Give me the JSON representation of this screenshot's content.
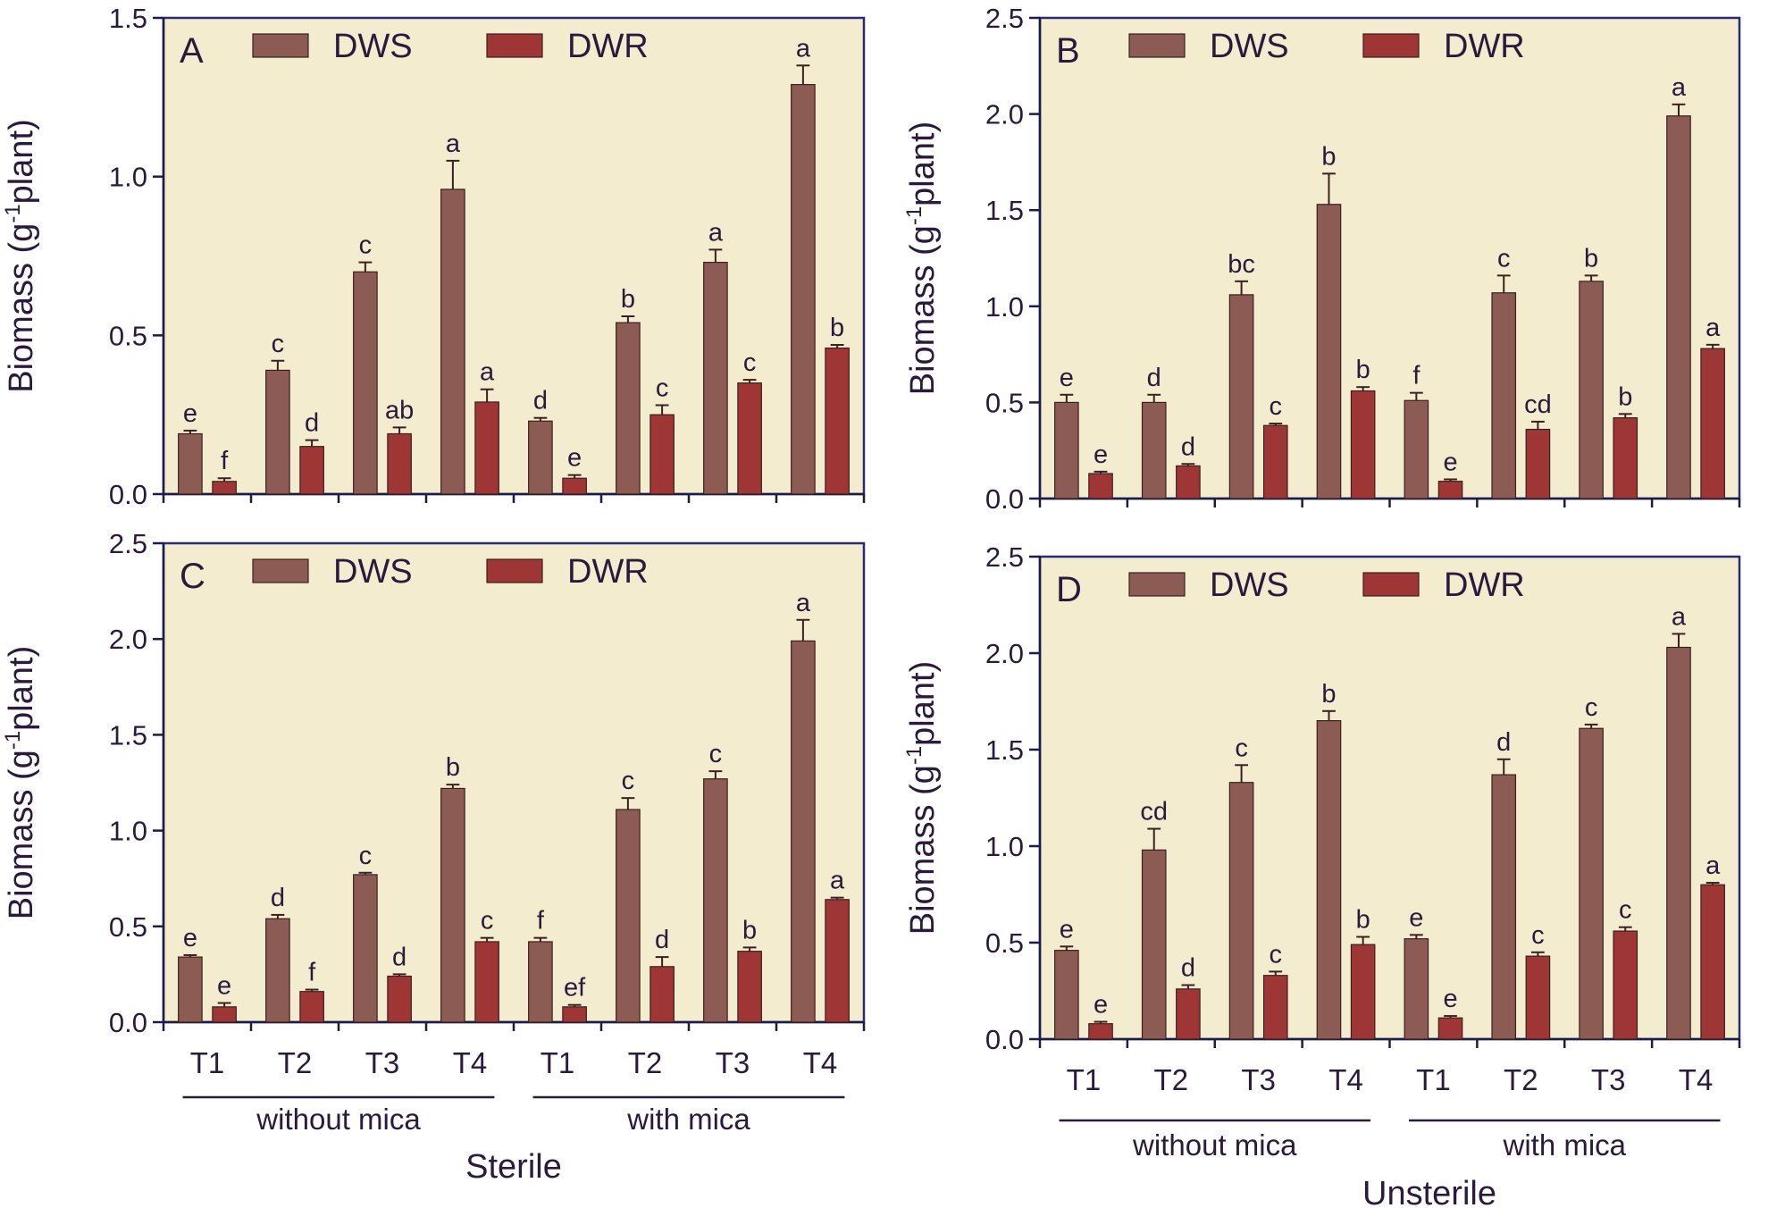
{
  "colors": {
    "DWS": "#8c5b54",
    "DWR": "#9e3635",
    "panel_background": "#f4ecce",
    "axis": "#1c1c4a",
    "text": "#2b1a3e"
  },
  "bottom_titles": {
    "left": "Sterile",
    "right": "Unsterile"
  },
  "chart_data": [
    {
      "type": "bar",
      "panel": "A",
      "ylabel": "Biomass (g-1plant)",
      "ylabel_parts": [
        "Biomass (g",
        "-1",
        "plant)"
      ],
      "ylim": [
        0,
        1.5
      ],
      "yticks": [
        "0.0",
        "0.5",
        "1.0",
        "1.5"
      ],
      "ytick_values": [
        0,
        0.5,
        1.0,
        1.5
      ],
      "categories": [
        "T1",
        "T2",
        "T3",
        "T4",
        "T1",
        "T2",
        "T3",
        "T4"
      ],
      "show_category_labels": false,
      "groups": [],
      "legend": [
        "DWS",
        "DWR"
      ],
      "series": [
        {
          "name": "DWS",
          "values": [
            0.19,
            0.39,
            0.7,
            0.96,
            0.23,
            0.54,
            0.73,
            1.29
          ],
          "errors": [
            0.01,
            0.03,
            0.03,
            0.09,
            0.01,
            0.02,
            0.04,
            0.06
          ],
          "labels": [
            "e",
            "c",
            "c",
            "a",
            "d",
            "b",
            "a",
            "a"
          ]
        },
        {
          "name": "DWR",
          "values": [
            0.04,
            0.15,
            0.19,
            0.29,
            0.05,
            0.25,
            0.35,
            0.46
          ],
          "errors": [
            0.01,
            0.02,
            0.02,
            0.04,
            0.01,
            0.03,
            0.01,
            0.01
          ],
          "labels": [
            "f",
            "d",
            "ab",
            "a",
            "e",
            "c",
            "c",
            "b"
          ]
        }
      ]
    },
    {
      "type": "bar",
      "panel": "B",
      "ylabel": "Biomass (g-1plant)",
      "ylabel_parts": [
        "Biomass (g",
        "-1",
        "plant)"
      ],
      "ylim": [
        0,
        2.5
      ],
      "yticks": [
        "0.0",
        "0.5",
        "1.0",
        "1.5",
        "2.0",
        "2.5"
      ],
      "ytick_values": [
        0,
        0.5,
        1.0,
        1.5,
        2.0,
        2.5
      ],
      "categories": [
        "T1",
        "T2",
        "T3",
        "T4",
        "T1",
        "T2",
        "T3",
        "T4"
      ],
      "show_category_labels": false,
      "groups": [],
      "legend": [
        "DWS",
        "DWR"
      ],
      "series": [
        {
          "name": "DWS",
          "values": [
            0.5,
            0.5,
            1.06,
            1.53,
            0.51,
            1.07,
            1.13,
            1.99
          ],
          "errors": [
            0.04,
            0.04,
            0.07,
            0.16,
            0.04,
            0.09,
            0.03,
            0.06
          ],
          "labels": [
            "e",
            "d",
            "bc",
            "b",
            "f",
            "c",
            "b",
            "a"
          ]
        },
        {
          "name": "DWR",
          "values": [
            0.13,
            0.17,
            0.38,
            0.56,
            0.09,
            0.36,
            0.42,
            0.78
          ],
          "errors": [
            0.01,
            0.01,
            0.01,
            0.02,
            0.01,
            0.04,
            0.02,
            0.02
          ],
          "labels": [
            "e",
            "d",
            "c",
            "b",
            "e",
            "cd",
            "b",
            "a"
          ]
        }
      ]
    },
    {
      "type": "bar",
      "panel": "C",
      "ylabel": "Biomass (g-1plant)",
      "ylabel_parts": [
        "Biomass (g",
        "-1",
        "plant)"
      ],
      "ylim": [
        0,
        2.5
      ],
      "yticks": [
        "0.0",
        "0.5",
        "1.0",
        "1.5",
        "2.0",
        "2.5"
      ],
      "ytick_values": [
        0,
        0.5,
        1.0,
        1.5,
        2.0,
        2.5
      ],
      "categories": [
        "T1",
        "T2",
        "T3",
        "T4",
        "T1",
        "T2",
        "T3",
        "T4"
      ],
      "show_category_labels": true,
      "groups": [
        {
          "label": "without mica",
          "from": 0,
          "to": 3
        },
        {
          "label": "with mica",
          "from": 4,
          "to": 7
        }
      ],
      "legend": [
        "DWS",
        "DWR"
      ],
      "series": [
        {
          "name": "DWS",
          "values": [
            0.34,
            0.54,
            0.77,
            1.22,
            0.42,
            1.11,
            1.27,
            1.99
          ],
          "errors": [
            0.01,
            0.02,
            0.01,
            0.02,
            0.02,
            0.06,
            0.04,
            0.11
          ],
          "labels": [
            "e",
            "d",
            "c",
            "b",
            "f",
            "c",
            "c",
            "a"
          ]
        },
        {
          "name": "DWR",
          "values": [
            0.08,
            0.16,
            0.24,
            0.42,
            0.08,
            0.29,
            0.37,
            0.64
          ],
          "errors": [
            0.02,
            0.01,
            0.01,
            0.02,
            0.01,
            0.05,
            0.02,
            0.01
          ],
          "labels": [
            "e",
            "f",
            "d",
            "c",
            "ef",
            "d",
            "b",
            "a"
          ]
        }
      ]
    },
    {
      "type": "bar",
      "panel": "D",
      "ylabel": "Biomass (g-1plant)",
      "ylabel_parts": [
        "Biomass (g",
        "-1",
        "plant)"
      ],
      "ylim": [
        0,
        2.5
      ],
      "yticks": [
        "0.0",
        "0.5",
        "1.0",
        "1.5",
        "2.0",
        "2.5"
      ],
      "ytick_values": [
        0,
        0.5,
        1.0,
        1.5,
        2.0,
        2.5
      ],
      "categories": [
        "T1",
        "T2",
        "T3",
        "T4",
        "T1",
        "T2",
        "T3",
        "T4"
      ],
      "show_category_labels": true,
      "groups": [
        {
          "label": "without mica",
          "from": 0,
          "to": 3
        },
        {
          "label": "with mica",
          "from": 4,
          "to": 7
        }
      ],
      "legend": [
        "DWS",
        "DWR"
      ],
      "series": [
        {
          "name": "DWS",
          "values": [
            0.46,
            0.98,
            1.33,
            1.65,
            0.52,
            1.37,
            1.61,
            2.03
          ],
          "errors": [
            0.02,
            0.11,
            0.09,
            0.05,
            0.02,
            0.08,
            0.02,
            0.07
          ],
          "labels": [
            "e",
            "cd",
            "c",
            "b",
            "e",
            "d",
            "c",
            "a"
          ]
        },
        {
          "name": "DWR",
          "values": [
            0.08,
            0.26,
            0.33,
            0.49,
            0.11,
            0.43,
            0.56,
            0.8
          ],
          "errors": [
            0.01,
            0.02,
            0.02,
            0.04,
            0.01,
            0.02,
            0.02,
            0.01
          ],
          "labels": [
            "e",
            "d",
            "c",
            "b",
            "e",
            "c",
            "c",
            "a"
          ]
        }
      ]
    }
  ]
}
